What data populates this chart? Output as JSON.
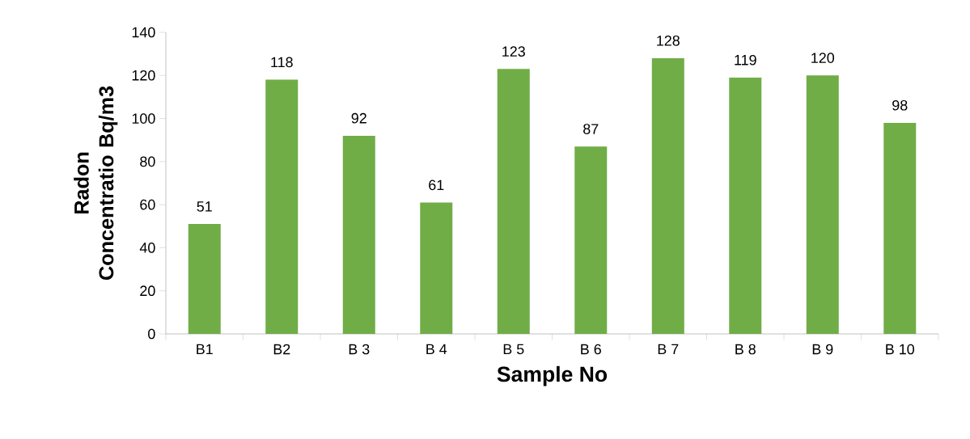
{
  "chart_data": {
    "type": "bar",
    "xlabel": "Sample No",
    "ylabel": "Radon Concentratio Bq/m3",
    "categories": [
      "B1",
      "B2",
      "B 3",
      "B 4",
      "B 5",
      "B 6",
      "B 7",
      "B 8",
      "B 9",
      "B 10"
    ],
    "values": [
      51,
      118,
      92,
      61,
      123,
      87,
      128,
      119,
      120,
      98
    ],
    "color": "#70ad47",
    "ylim": [
      0,
      140
    ],
    "yticks": [
      0,
      20,
      40,
      60,
      80,
      100,
      120,
      140
    ],
    "data_labels": true,
    "grid": false
  }
}
